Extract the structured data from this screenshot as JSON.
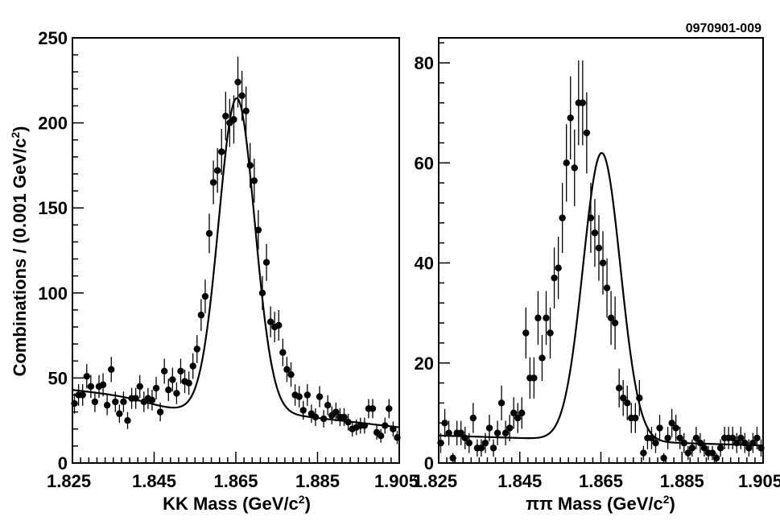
{
  "figure_id": "0970901-009",
  "ylabel": {
    "main": "Combinations / (0.001 GeV/c",
    "sup": "2",
    "tail": ")"
  },
  "chart_data": [
    {
      "type": "scatter",
      "xlabel": {
        "main": "KK Mass (GeV/c",
        "sup": "2",
        "tail": ")"
      },
      "xlim": [
        1.825,
        1.905
      ],
      "ylim": [
        0,
        250
      ],
      "xticks": [
        1.825,
        1.845,
        1.865,
        1.885,
        1.905
      ],
      "xtick_labels": [
        "1.825",
        "1.845",
        "1.865",
        "1.885",
        "1.905"
      ],
      "yticks": [
        0,
        50,
        100,
        150,
        200,
        250
      ],
      "ytick_labels": [
        "0",
        "50",
        "100",
        "150",
        "200",
        "250"
      ],
      "grid": false,
      "fit": {
        "peak": 215,
        "mean": 1.8652,
        "sigma": 0.0044,
        "bkg_left": 43,
        "bkg_right": 21,
        "dip": 4
      },
      "x": [
        1.8255,
        1.8265,
        1.8275,
        1.8285,
        1.8295,
        1.8305,
        1.8315,
        1.8325,
        1.8335,
        1.8345,
        1.8355,
        1.8365,
        1.8375,
        1.8385,
        1.8395,
        1.8405,
        1.8415,
        1.8425,
        1.8435,
        1.8445,
        1.8455,
        1.8465,
        1.8475,
        1.8485,
        1.8495,
        1.8505,
        1.8515,
        1.8525,
        1.8535,
        1.8545,
        1.8555,
        1.8565,
        1.8575,
        1.8585,
        1.8595,
        1.8605,
        1.8615,
        1.8625,
        1.8635,
        1.8645,
        1.8655,
        1.8665,
        1.8675,
        1.8685,
        1.8695,
        1.8705,
        1.8715,
        1.8725,
        1.8735,
        1.8745,
        1.8755,
        1.8765,
        1.8775,
        1.8785,
        1.8795,
        1.8805,
        1.8815,
        1.8825,
        1.8835,
        1.8845,
        1.8855,
        1.8865,
        1.8875,
        1.8885,
        1.8895,
        1.8905,
        1.8915,
        1.8925,
        1.8935,
        1.8945,
        1.8955,
        1.8965,
        1.8975,
        1.8985,
        1.8995,
        1.9005,
        1.9015,
        1.9025,
        1.9035,
        1.9045
      ],
      "y": [
        35,
        40,
        40,
        51,
        45,
        36,
        45,
        46,
        34,
        55,
        36,
        29,
        36,
        25,
        38,
        38,
        45,
        36,
        38,
        37,
        44,
        30,
        54,
        43,
        49,
        41,
        54,
        48,
        47,
        57,
        67,
        87,
        98,
        135,
        165,
        172,
        183,
        204,
        200,
        202,
        224,
        216,
        207,
        175,
        166,
        137,
        100,
        118,
        83,
        80,
        81,
        65,
        55,
        52,
        40,
        39,
        31,
        40,
        29,
        27,
        39,
        26,
        34,
        28,
        30,
        27,
        27,
        24,
        20,
        21,
        22,
        22,
        32,
        32,
        18,
        16,
        22,
        32,
        20,
        15
      ]
    },
    {
      "type": "scatter",
      "xlabel": {
        "main": "ππ Mass (GeV/c",
        "sup": "2",
        "tail": ")"
      },
      "xlim": [
        1.825,
        1.905
      ],
      "ylim": [
        0,
        85
      ],
      "xticks": [
        1.825,
        1.845,
        1.865,
        1.885,
        1.905
      ],
      "xtick_labels": [
        "1.825",
        "1.845",
        "1.865",
        "1.885",
        "1.905"
      ],
      "yticks": [
        0,
        20,
        40,
        60,
        80
      ],
      "ytick_labels": [
        "0",
        "20",
        "40",
        "60",
        "80"
      ],
      "grid": false,
      "fit": {
        "peak": 62,
        "mean": 1.8652,
        "sigma": 0.0046,
        "bkg_left": 5.5,
        "bkg_right": 3.5,
        "dip": 0
      },
      "x": [
        1.8255,
        1.8265,
        1.8275,
        1.8285,
        1.8295,
        1.8305,
        1.8315,
        1.8325,
        1.8335,
        1.8345,
        1.8355,
        1.8365,
        1.8375,
        1.8385,
        1.8395,
        1.8405,
        1.8415,
        1.8425,
        1.8435,
        1.8445,
        1.8455,
        1.8465,
        1.8475,
        1.8485,
        1.8495,
        1.8505,
        1.8515,
        1.8525,
        1.8535,
        1.8545,
        1.8555,
        1.8565,
        1.8575,
        1.8585,
        1.8595,
        1.8605,
        1.8615,
        1.8625,
        1.8635,
        1.8645,
        1.8655,
        1.8665,
        1.8675,
        1.8685,
        1.8695,
        1.8705,
        1.8715,
        1.8725,
        1.8735,
        1.8745,
        1.8755,
        1.8765,
        1.8775,
        1.8785,
        1.8795,
        1.8805,
        1.8815,
        1.8825,
        1.8835,
        1.8845,
        1.8855,
        1.8865,
        1.8875,
        1.8885,
        1.8895,
        1.8905,
        1.8915,
        1.8925,
        1.8935,
        1.8945,
        1.8955,
        1.8965,
        1.8975,
        1.8985,
        1.8995,
        1.9005,
        1.9015,
        1.9025,
        1.9035,
        1.9045
      ],
      "y": [
        4,
        8,
        6,
        1,
        6,
        6,
        5,
        4,
        9,
        3,
        3,
        4,
        7,
        3,
        6,
        12,
        6,
        7,
        10,
        9,
        10,
        26,
        17,
        17,
        29,
        21,
        29,
        26,
        37,
        39,
        49,
        60,
        69,
        59,
        72,
        72,
        66,
        49,
        46,
        43,
        40,
        35,
        29,
        28,
        15,
        13,
        12,
        9,
        9,
        13,
        2,
        5,
        5,
        4,
        7,
        1,
        5,
        8,
        7,
        5,
        4,
        2,
        3,
        5,
        4,
        3,
        2,
        2,
        1,
        3,
        5,
        5,
        5,
        4,
        5,
        4,
        3,
        4,
        5,
        3
      ]
    }
  ]
}
